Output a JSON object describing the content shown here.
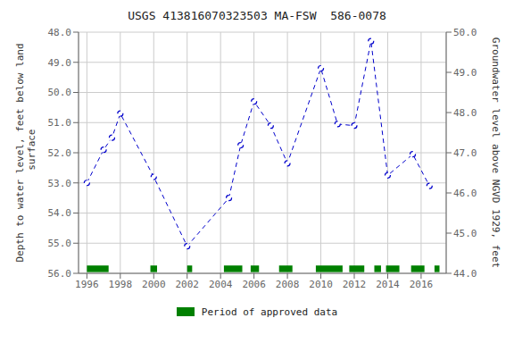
{
  "chart_data": {
    "type": "line",
    "title": "USGS 413816070323503 MA-FSW  586-0078",
    "y_label": "Depth to water level, feet below land\n surface",
    "y2_label": "Groundwater level above NGVD 1929, feet",
    "x": [
      1996,
      1997,
      1997.5,
      1998,
      2000,
      2002,
      2004.5,
      2005.2,
      2006,
      2007,
      2008,
      2010,
      2011,
      2012,
      2013,
      2014,
      2015.5,
      2016.5
    ],
    "series": [
      {
        "values": [
          53.0,
          51.9,
          51.5,
          50.7,
          52.8,
          55.1,
          53.5,
          51.75,
          50.3,
          51.1,
          52.35,
          49.2,
          51.05,
          51.1,
          48.3,
          52.75,
          52.05,
          53.1
        ],
        "color": "#0000cc",
        "line_style": "dashed",
        "marker": "circle"
      }
    ],
    "xlim": [
      1995.5,
      2017.5
    ],
    "xticks": [
      1996,
      1998,
      2000,
      2002,
      2004,
      2006,
      2008,
      2010,
      2012,
      2014,
      2016
    ],
    "ylim": [
      56.0,
      48.0
    ],
    "yticks": [
      {
        "value": 48.0,
        "label": "48.0"
      },
      {
        "value": 49.0,
        "label": "49.0"
      },
      {
        "value": 50.0,
        "label": "50.0"
      },
      {
        "value": 51.0,
        "label": "51.0"
      },
      {
        "value": 52.0,
        "label": "52.0"
      },
      {
        "value": 53.0,
        "label": "53.0"
      },
      {
        "value": 54.0,
        "label": "54.0"
      },
      {
        "value": 55.0,
        "label": "55.0"
      },
      {
        "value": 56.0,
        "label": "56.0"
      }
    ],
    "y2lim": [
      44.0,
      50.0
    ],
    "y2ticks": [
      {
        "value": 50.0,
        "label": "50.0"
      },
      {
        "value": 49.0,
        "label": "49.0"
      },
      {
        "value": 48.0,
        "label": "48.0"
      },
      {
        "value": 47.0,
        "label": "47.0"
      },
      {
        "value": 46.0,
        "label": "46.0"
      },
      {
        "value": 45.0,
        "label": "45.0"
      },
      {
        "value": 44.0,
        "label": "44.0"
      }
    ],
    "grid": true,
    "approved_periods": {
      "name": "Period of approved data",
      "color": "#008000",
      "y": 55.85,
      "height": 0.22,
      "periods": [
        [
          1996.0,
          1997.3
        ],
        [
          1999.8,
          2000.2
        ],
        [
          2002.0,
          2002.3
        ],
        [
          2004.2,
          2005.3
        ],
        [
          2005.8,
          2006.3
        ],
        [
          2007.5,
          2008.3
        ],
        [
          2009.7,
          2011.3
        ],
        [
          2011.7,
          2012.6
        ],
        [
          2013.2,
          2013.6
        ],
        [
          2013.9,
          2014.7
        ],
        [
          2015.4,
          2016.2
        ],
        [
          2016.8,
          2017.1
        ]
      ]
    }
  }
}
